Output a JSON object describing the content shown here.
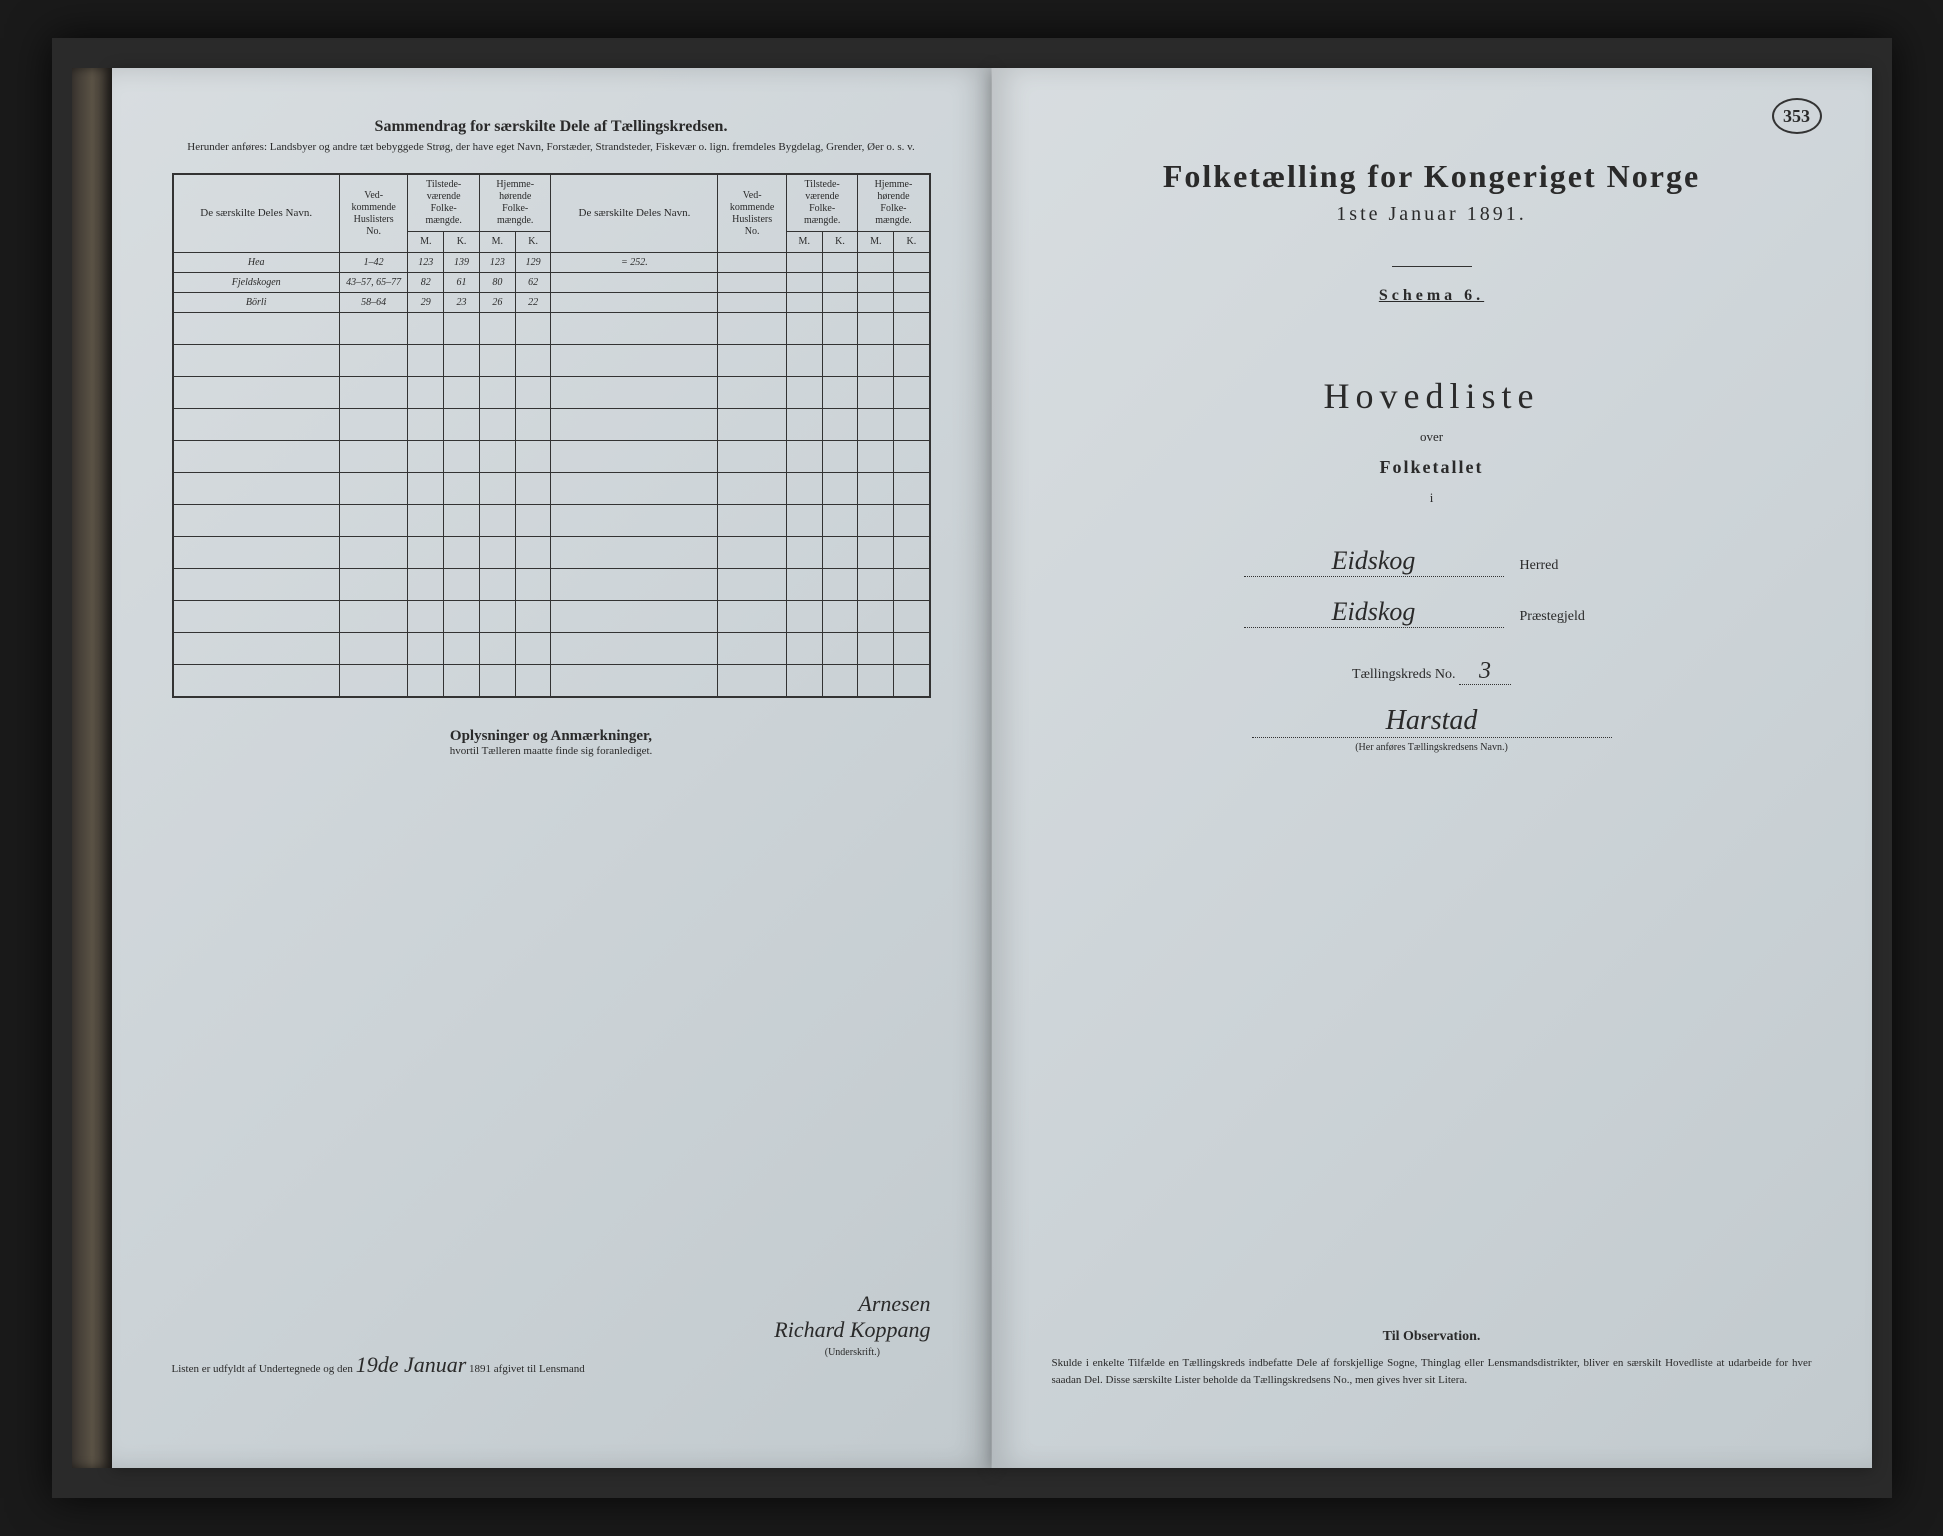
{
  "page_number": "353",
  "colors": {
    "paper": "#cdd4d8",
    "ink": "#2a2a2a",
    "background": "#1a1a1a"
  },
  "left": {
    "header_title": "Sammendrag for særskilte Dele af Tællingskredsen.",
    "header_sub": "Herunder anføres: Landsbyer og andre tæt bebyggede Strøg, der have eget Navn, Forstæder, Strandsteder, Fiskevær o. lign. fremdeles Bygdelag, Grender, Øer o. s. v.",
    "table": {
      "headers": {
        "name": "De særskilte Deles Navn.",
        "huslisters": "Ved-kommende Huslisters No.",
        "tilstede": "Tilstede-værende Folke-mængde.",
        "hjemme": "Hjemme-hørende Folke-mængde.",
        "m": "M.",
        "k": "K."
      },
      "rows": [
        {
          "name": "Hea",
          "huslisters": "1–42",
          "tm": "123",
          "tk": "139",
          "hm": "123",
          "hk": "129",
          "note": "= 252."
        },
        {
          "name": "Fjeldskogen",
          "huslisters": "43–57, 65–77",
          "tm": "82",
          "tk": "61",
          "hm": "80",
          "hk": "62",
          "note": ""
        },
        {
          "name": "Börli",
          "huslisters": "58–64",
          "tm": "29",
          "tk": "23",
          "hm": "26",
          "hk": "22",
          "note": ""
        }
      ],
      "empty_rows": 12
    },
    "oplysninger_title": "Oplysninger og Anmærkninger,",
    "oplysninger_sub": "hvortil Tælleren maatte finde sig foranlediget.",
    "signature": {
      "prefix": "Listen er udfyldt af Undertegnede og den",
      "date_hw": "19de Januar",
      "year": "1891 afgivet til Lensmand",
      "name1": "Arnesen",
      "name2": "Richard Koppang",
      "underskrift": "(Underskrift.)"
    }
  },
  "right": {
    "title": "Folketælling for Kongeriget Norge",
    "subtitle": "1ste Januar 1891.",
    "schema": "Schema 6.",
    "hovedliste": "Hovedliste",
    "over": "over",
    "folketallet": "Folketallet",
    "i": "i",
    "herred_hw": "Eidskog",
    "herred_label": "Herred",
    "praestegjeld_hw": "Eidskog",
    "praestegjeld_label": "Præstegjeld",
    "kreds_label": "Tællingskreds No.",
    "kreds_no": "3",
    "kreds_name_hw": "Harstad",
    "kreds_caption": "(Her anføres Tællingskredsens Navn.)",
    "obs_title": "Til Observation.",
    "obs_text": "Skulde i enkelte Tilfælde en Tællingskreds indbefatte Dele af forskjellige Sogne, Thinglag eller Lensmandsdistrikter, bliver en særskilt Hovedliste at udarbeide for hver saadan Del. Disse særskilte Lister beholde da Tællingskredsens No., men gives hver sit Litera."
  }
}
